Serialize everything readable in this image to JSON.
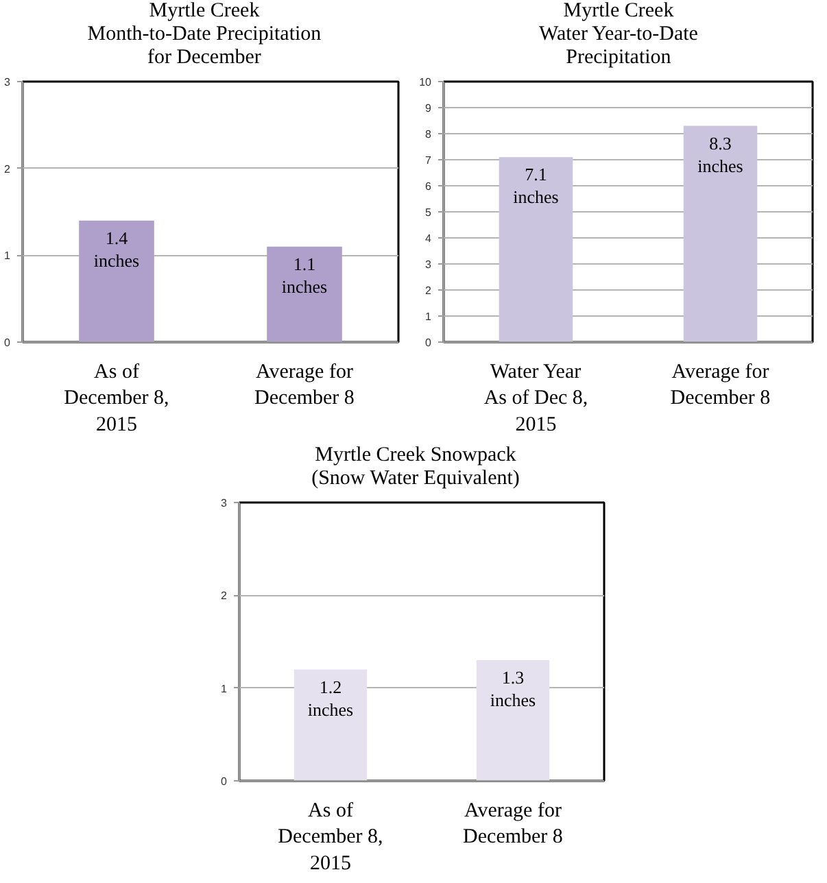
{
  "chart_data": [
    {
      "type": "bar",
      "title": "Myrtle Creek\nMonth-to-Date Precipitation\nfor December",
      "categories": [
        "As of\nDecember 8,\n2015",
        "Average for\nDecember 8"
      ],
      "values": [
        1.4,
        1.1
      ],
      "color": "#ae9fcb",
      "ylim": [
        0,
        3
      ],
      "yticks": [
        0,
        1,
        2,
        3
      ],
      "grid": "y",
      "value_labels": [
        "1.4\ninches",
        "1.1\ninches"
      ]
    },
    {
      "type": "bar",
      "title": "Myrtle Creek\nWater Year-to-Date\nPrecipitation",
      "categories": [
        "Water Year\nAs of Dec 8,\n2015",
        "Average for\nDecember 8"
      ],
      "values": [
        7.1,
        8.3
      ],
      "color": "#cbc4df",
      "ylim": [
        0,
        10
      ],
      "yticks": [
        0,
        1,
        2,
        3,
        4,
        5,
        6,
        7,
        8,
        9,
        10
      ],
      "grid": "y",
      "value_labels": [
        "7.1\ninches",
        "8.3\ninches"
      ]
    },
    {
      "type": "bar",
      "title": "Myrtle Creek Snowpack\n(Snow Water Equivalent)",
      "categories": [
        "As of\nDecember 8,\n2015",
        "Average for\nDecember 8"
      ],
      "values": [
        1.2,
        1.3
      ],
      "color": "#e5e1ee",
      "ylim": [
        0,
        3
      ],
      "yticks": [
        0,
        1,
        2,
        3
      ],
      "grid": "y",
      "value_labels": [
        "1.2\ninches",
        "1.3\ninches"
      ]
    }
  ]
}
